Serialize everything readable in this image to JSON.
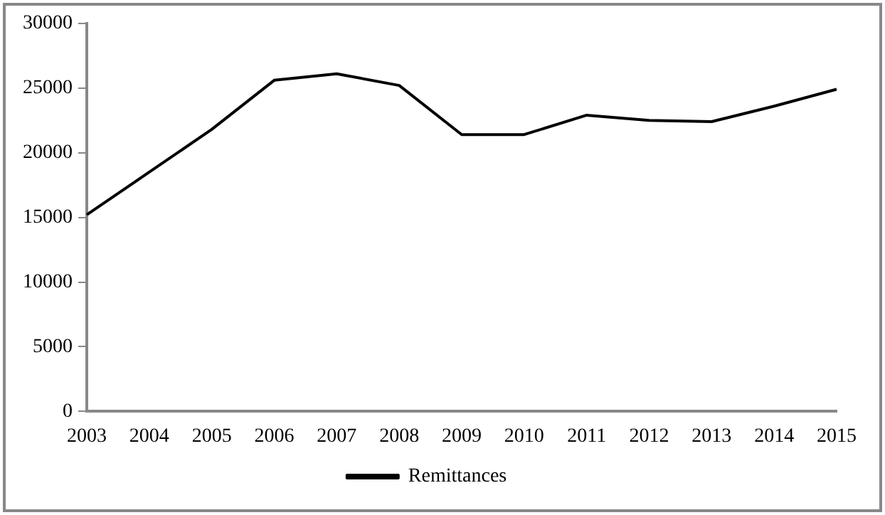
{
  "chart_data": {
    "type": "line",
    "categories": [
      "2003",
      "2004",
      "2005",
      "2006",
      "2007",
      "2008",
      "2009",
      "2010",
      "2011",
      "2012",
      "2013",
      "2014",
      "2015"
    ],
    "series": [
      {
        "name": "Remittances",
        "color": "#000000",
        "values": [
          15200,
          18500,
          21800,
          25600,
          26100,
          25200,
          21400,
          21400,
          22900,
          22500,
          22400,
          23600,
          24900
        ]
      }
    ],
    "ylim": [
      0,
      30000
    ],
    "yticks": [
      0,
      5000,
      10000,
      15000,
      20000,
      25000,
      30000
    ],
    "grid": false,
    "legend": "bottom",
    "marker": "none",
    "line_style": "solid"
  }
}
